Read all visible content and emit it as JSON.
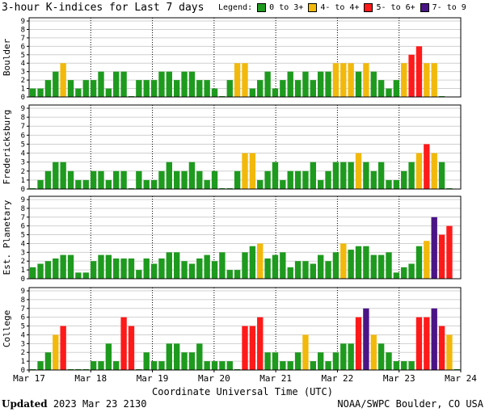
{
  "title": "3-hour K-indices for Last 7 days",
  "legend": {
    "label": "Legend:",
    "items": [
      {
        "label": "0 to 3+",
        "color": "#1e9a1e"
      },
      {
        "label": "4- to 4+",
        "color": "#f2b90c"
      },
      {
        "label": "5- to 6+",
        "color": "#ff1a1a"
      },
      {
        "label": "7- to 9",
        "color": "#4a1486"
      }
    ]
  },
  "footer": {
    "updated_label": "Updated",
    "updated_value": "2023 Mar 23 2130",
    "source": "NOAA/SWPC Boulder, CO USA"
  },
  "chart_data": [
    {
      "type": "bar",
      "title": "Boulder",
      "ylabel": "Boulder",
      "xlabel": "Coordinate Universal Time (UTC)",
      "ylim": [
        0,
        9
      ],
      "yticks": [
        "0",
        "1",
        "2",
        "3",
        "4",
        "5",
        "6",
        "7",
        "8",
        "9"
      ],
      "xticks": [
        "Mar 17",
        "Mar 18",
        "Mar 19",
        "Mar 20",
        "Mar 21",
        "Mar 22",
        "Mar 23",
        "Mar 24"
      ],
      "grid": true,
      "values": [
        1,
        1,
        2,
        3,
        4,
        2,
        1,
        2,
        2,
        3,
        1,
        3,
        3,
        0,
        2,
        2,
        2,
        3,
        3,
        2,
        3,
        3,
        2,
        2,
        1,
        0,
        2,
        4,
        4,
        1,
        2,
        3,
        1,
        2,
        3,
        2,
        3,
        2,
        3,
        3,
        4,
        4,
        4,
        3,
        4,
        3,
        2,
        1,
        2,
        4,
        5,
        6,
        4,
        4,
        0
      ]
    },
    {
      "type": "bar",
      "title": "Fredericksburg",
      "ylabel": "Fredericksburg",
      "xlabel": "Coordinate Universal Time (UTC)",
      "ylim": [
        0,
        9
      ],
      "yticks": [
        "0",
        "1",
        "2",
        "3",
        "4",
        "5",
        "6",
        "7",
        "8",
        "9"
      ],
      "xticks": [
        "Mar 17",
        "Mar 18",
        "Mar 19",
        "Mar 20",
        "Mar 21",
        "Mar 22",
        "Mar 23",
        "Mar 24"
      ],
      "grid": true,
      "values": [
        0,
        1,
        2,
        3,
        3,
        2,
        1,
        1,
        2,
        2,
        1,
        2,
        2,
        0,
        2,
        1,
        1,
        2,
        3,
        2,
        2,
        3,
        2,
        1,
        2,
        0,
        0,
        2,
        4,
        4,
        1,
        2,
        3,
        1,
        2,
        2,
        2,
        3,
        1,
        2,
        3,
        3,
        3,
        4,
        3,
        2,
        3,
        1,
        1,
        2,
        3,
        4,
        5,
        4,
        3,
        0
      ]
    },
    {
      "type": "bar",
      "title": "Est. Planetary",
      "ylabel": "Est. Planetary",
      "xlabel": "Coordinate Universal Time (UTC)",
      "ylim": [
        0,
        9
      ],
      "yticks": [
        "0",
        "1",
        "2",
        "3",
        "4",
        "5",
        "6",
        "7",
        "8",
        "9"
      ],
      "xticks": [
        "Mar 17",
        "Mar 18",
        "Mar 19",
        "Mar 20",
        "Mar 21",
        "Mar 22",
        "Mar 23",
        "Mar 24"
      ],
      "grid": true,
      "values": [
        1.3,
        1.7,
        2,
        2.3,
        2.7,
        2.7,
        0.7,
        0.7,
        2,
        2.7,
        2.7,
        2.3,
        2.3,
        2.3,
        1,
        2.3,
        1.7,
        2.3,
        3,
        3,
        2,
        1.7,
        2.3,
        2.7,
        2,
        3,
        1,
        1,
        3,
        3.7,
        4,
        2.3,
        2.7,
        3,
        1.3,
        2,
        2,
        1.7,
        2.7,
        2,
        3,
        4,
        3.3,
        3.7,
        3.7,
        2.7,
        2.7,
        3,
        0.7,
        1.3,
        1.7,
        3.7,
        4.3,
        7,
        5,
        6
      ]
    },
    {
      "type": "bar",
      "title": "College",
      "ylabel": "College",
      "xlabel": "Coordinate Universal Time (UTC)",
      "ylim": [
        0,
        9
      ],
      "yticks": [
        "0",
        "1",
        "2",
        "3",
        "4",
        "5",
        "6",
        "7",
        "8",
        "9"
      ],
      "xticks": [
        "Mar 17",
        "Mar 18",
        "Mar 19",
        "Mar 20",
        "Mar 21",
        "Mar 22",
        "Mar 23",
        "Mar 24"
      ],
      "grid": true,
      "values": [
        0,
        1,
        2,
        4,
        5,
        0,
        0,
        0,
        1,
        1,
        3,
        1,
        6,
        5,
        0,
        2,
        1,
        1,
        3,
        3,
        2,
        2,
        3,
        1,
        1,
        1,
        1,
        0,
        5,
        5,
        6,
        2,
        2,
        1,
        1,
        2,
        4,
        1,
        2,
        1,
        2,
        3,
        3,
        6,
        7,
        4,
        3,
        2,
        1,
        1,
        1,
        6,
        6,
        7,
        5,
        4,
        0
      ]
    }
  ]
}
